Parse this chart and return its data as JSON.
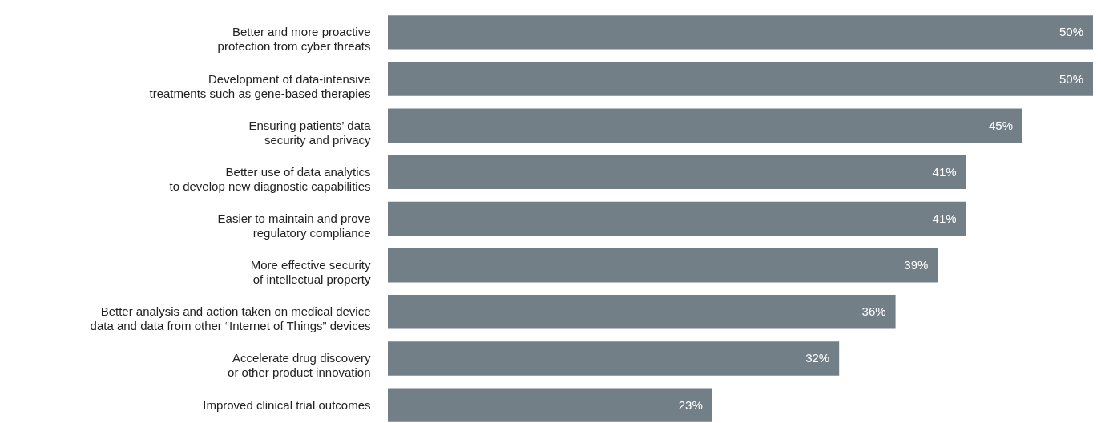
{
  "chart_data": {
    "type": "bar",
    "orientation": "horizontal",
    "data_labels": true,
    "color": "#737f87",
    "xlim": [
      0,
      50
    ],
    "tick_labels": "y",
    "categories": [
      "Better and more proactive\nprotection from cyber threats",
      "Development of data-intensive\ntreatments such as gene-based therapies",
      "Ensuring patients’ data\nsecurity and privacy",
      "Better use of data analytics\nto develop new diagnostic capabilities",
      "Easier to maintain and prove\nregulatory compliance",
      "More effective security\nof intellectual property",
      "Better analysis and action taken on medical device\ndata and data from other “Internet of Things” devices",
      "Accelerate drug discovery\nor other product innovation",
      "Improved clinical trial outcomes"
    ],
    "values": [
      50,
      50,
      45,
      41,
      41,
      39,
      36,
      32,
      23
    ],
    "value_labels": [
      "50%",
      "50%",
      "45%",
      "41%",
      "41%",
      "39%",
      "36%",
      "32%",
      "23%"
    ]
  }
}
